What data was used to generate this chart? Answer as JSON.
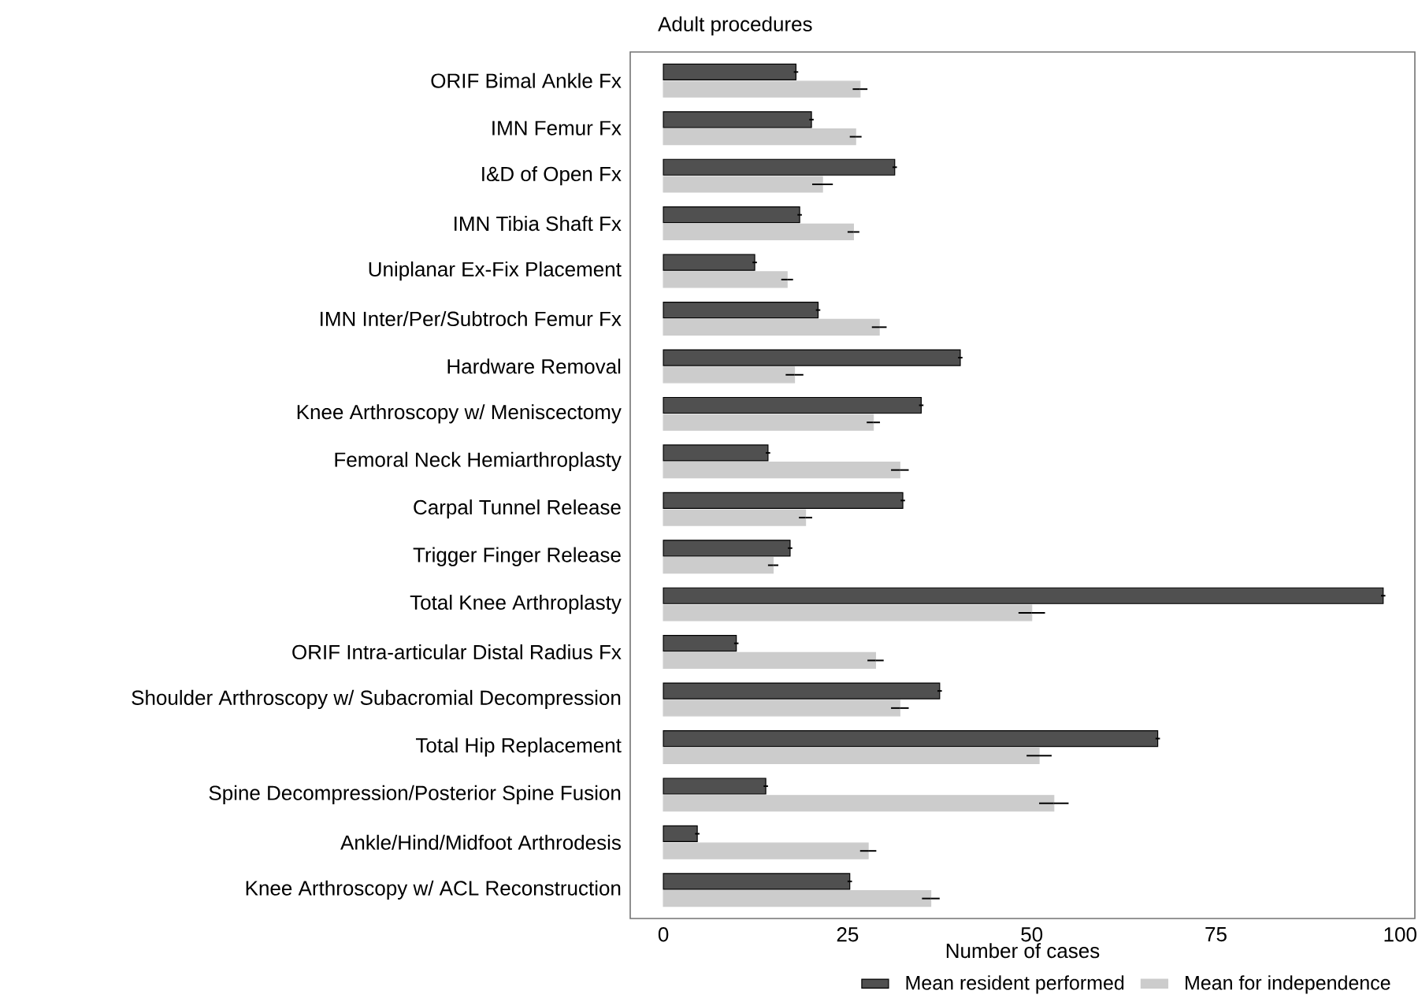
{
  "chart_data": {
    "type": "bar",
    "orientation": "horizontal",
    "title": "Adult procedures",
    "xlabel": "Number of cases",
    "categories": [
      "ORIF Bimal Ankle Fx",
      "IMN Femur Fx",
      "I&D of Open Fx",
      "IMN Tibia Shaft Fx",
      "Uniplanar Ex-Fix Placement",
      "IMN Inter/Per/Subtroch Femur Fx",
      "Hardware Removal",
      "Knee Arthroscopy w/ Meniscectomy",
      "Femoral Neck Hemiarthroplasty",
      "Carpal Tunnel Release",
      "Trigger Finger Release",
      "Total Knee Arthroplasty",
      "ORIF Intra-articular Distal Radius Fx",
      "Shoulder Arthroscopy w/ Subacromial Decompression",
      "Total Hip Replacement",
      "Spine Decompression/Posterior Spine Fusion",
      "Ankle/Hind/Midfoot Arthrodesis",
      "Knee Arthroscopy w/ ACL Reconstruction"
    ],
    "series": [
      {
        "name": "Mean resident performed",
        "color": "#505050",
        "values": [
          18.0,
          20.1,
          31.4,
          18.5,
          12.4,
          21.0,
          40.3,
          35.0,
          14.2,
          32.5,
          17.2,
          97.7,
          9.9,
          37.5,
          67.1,
          13.9,
          4.6,
          25.3
        ],
        "errors": [
          0.3,
          0.3,
          0.3,
          0.3,
          0.3,
          0.3,
          0.3,
          0.3,
          0.3,
          0.3,
          0.3,
          0.3,
          0.3,
          0.3,
          0.3,
          0.3,
          0.3,
          0.3
        ]
      },
      {
        "name": "Mean for independence",
        "color": "#cccccc",
        "values": [
          26.7,
          26.1,
          21.6,
          25.8,
          16.8,
          29.3,
          17.8,
          28.5,
          32.1,
          19.3,
          14.9,
          50.0,
          28.8,
          32.1,
          51.0,
          53.0,
          27.8,
          36.3
        ],
        "errors": [
          1.0,
          0.8,
          1.4,
          0.8,
          0.8,
          1.0,
          1.2,
          0.9,
          1.2,
          0.9,
          0.7,
          1.8,
          1.1,
          1.2,
          1.7,
          2.0,
          1.1,
          1.2
        ]
      }
    ],
    "xlim": [
      -4.5,
      102
    ],
    "xticks": [
      0,
      25,
      50,
      75,
      100
    ],
    "legend": "bottom",
    "grid": false
  }
}
